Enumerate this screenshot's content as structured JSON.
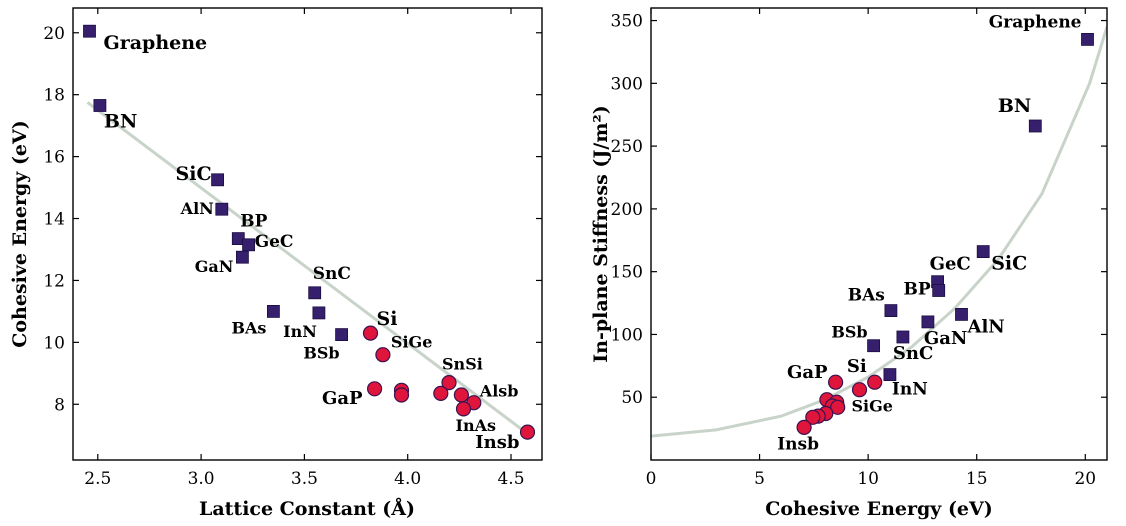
{
  "chart_data": [
    {
      "type": "scatter",
      "title": "",
      "xlabel": "Lattice Constant (Å)",
      "ylabel": "Cohesive Energy (eV)",
      "xlim": [
        2.38,
        4.65
      ],
      "ylim": [
        6.2,
        20.8
      ],
      "xticks": [
        "2.5",
        "3.0",
        "3.5",
        "4.0",
        "4.5"
      ],
      "xtick_values": [
        2.5,
        3.0,
        3.5,
        4.0,
        4.5
      ],
      "yticks": [
        "8",
        "10",
        "12",
        "14",
        "16",
        "18",
        "20"
      ],
      "ytick_values": [
        8,
        10,
        12,
        14,
        16,
        18,
        20
      ],
      "fit_line": [
        [
          2.45,
          17.75
        ],
        [
          4.58,
          7.05
        ]
      ],
      "series": [
        {
          "marker": "square",
          "color": "#36206e",
          "points": [
            {
              "x": 2.46,
              "y": 20.05,
              "label": "Graphene"
            },
            {
              "x": 2.51,
              "y": 17.65,
              "label": "BN"
            },
            {
              "x": 3.08,
              "y": 15.25,
              "label": "SiC"
            },
            {
              "x": 3.1,
              "y": 14.3,
              "label": "AlN"
            },
            {
              "x": 3.18,
              "y": 13.35,
              "label": "BP"
            },
            {
              "x": 3.23,
              "y": 13.15,
              "label": "GeC"
            },
            {
              "x": 3.2,
              "y": 12.75,
              "label": "GaN"
            },
            {
              "x": 3.55,
              "y": 11.6,
              "label": "SnC"
            },
            {
              "x": 3.35,
              "y": 11.0,
              "label": "BAs"
            },
            {
              "x": 3.57,
              "y": 10.95,
              "label": "InN"
            },
            {
              "x": 3.68,
              "y": 10.25,
              "label": "BSb"
            }
          ]
        },
        {
          "marker": "circle",
          "color": "#e0153c",
          "points": [
            {
              "x": 3.82,
              "y": 10.3,
              "label": "Si"
            },
            {
              "x": 3.88,
              "y": 9.6,
              "label": "SiGe"
            },
            {
              "x": 3.84,
              "y": 8.5,
              "label": "GaP"
            },
            {
              "x": 3.97,
              "y": 8.45,
              "label": ""
            },
            {
              "x": 3.97,
              "y": 8.3,
              "label": ""
            },
            {
              "x": 4.2,
              "y": 8.7,
              "label": "SnSi"
            },
            {
              "x": 4.16,
              "y": 8.35,
              "label": ""
            },
            {
              "x": 4.26,
              "y": 8.3,
              "label": ""
            },
            {
              "x": 4.32,
              "y": 8.05,
              "label": "Alsb"
            },
            {
              "x": 4.27,
              "y": 7.85,
              "label": "InAs"
            },
            {
              "x": 4.58,
              "y": 7.1,
              "label": "Insb"
            }
          ]
        }
      ]
    },
    {
      "type": "scatter",
      "title": "",
      "xlabel": "Cohesive Energy (eV)",
      "ylabel": "In-plane Stiffness (J/m²)",
      "xlim": [
        0,
        21
      ],
      "ylim": [
        0,
        360
      ],
      "xticks": [
        "0",
        "5",
        "10",
        "15",
        "20"
      ],
      "xtick_values": [
        0,
        5,
        10,
        15,
        20
      ],
      "yticks": [
        "50",
        "100",
        "150",
        "200",
        "250",
        "300",
        "350"
      ],
      "ytick_values": [
        50,
        100,
        150,
        200,
        250,
        300,
        350
      ],
      "fit_curve": [
        [
          0,
          19
        ],
        [
          3,
          24
        ],
        [
          6,
          35
        ],
        [
          8,
          48
        ],
        [
          10,
          66
        ],
        [
          12,
          90
        ],
        [
          14,
          121
        ],
        [
          16,
          160
        ],
        [
          18,
          212
        ],
        [
          20.2,
          300
        ],
        [
          21,
          345
        ]
      ],
      "series": [
        {
          "marker": "square",
          "color": "#36206e",
          "points": [
            {
              "x": 20.1,
              "y": 335,
              "label": "Graphene"
            },
            {
              "x": 17.7,
              "y": 266,
              "label": "BN"
            },
            {
              "x": 15.3,
              "y": 166,
              "label": "SiC"
            },
            {
              "x": 13.2,
              "y": 142,
              "label": "GeC"
            },
            {
              "x": 13.25,
              "y": 135,
              "label": "BP"
            },
            {
              "x": 11.05,
              "y": 119,
              "label": "BAs"
            },
            {
              "x": 14.3,
              "y": 116,
              "label": "AlN"
            },
            {
              "x": 12.75,
              "y": 110,
              "label": "GaN"
            },
            {
              "x": 11.6,
              "y": 98,
              "label": "SnC"
            },
            {
              "x": 10.25,
              "y": 91,
              "label": "BSb"
            },
            {
              "x": 11.0,
              "y": 68,
              "label": "InN"
            }
          ]
        },
        {
          "marker": "circle",
          "color": "#e0153c",
          "points": [
            {
              "x": 8.5,
              "y": 62,
              "label": "GaP"
            },
            {
              "x": 10.3,
              "y": 62,
              "label": "Si"
            },
            {
              "x": 9.6,
              "y": 56,
              "label": "SiGe"
            },
            {
              "x": 8.1,
              "y": 48,
              "label": ""
            },
            {
              "x": 8.55,
              "y": 46,
              "label": ""
            },
            {
              "x": 8.35,
              "y": 43,
              "label": ""
            },
            {
              "x": 8.6,
              "y": 42,
              "label": ""
            },
            {
              "x": 8.05,
              "y": 37,
              "label": ""
            },
            {
              "x": 7.7,
              "y": 35,
              "label": ""
            },
            {
              "x": 7.45,
              "y": 34,
              "label": ""
            },
            {
              "x": 7.05,
              "y": 26,
              "label": "Insb"
            }
          ]
        }
      ]
    }
  ]
}
